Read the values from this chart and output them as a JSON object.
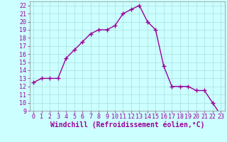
{
  "x": [
    0,
    1,
    2,
    3,
    4,
    5,
    6,
    7,
    8,
    9,
    10,
    11,
    12,
    13,
    14,
    15,
    16,
    17,
    18,
    19,
    20,
    21,
    22,
    23
  ],
  "y": [
    12.5,
    13.0,
    13.0,
    13.0,
    15.5,
    16.5,
    17.5,
    18.5,
    19.0,
    19.0,
    19.5,
    21.0,
    21.5,
    22.0,
    20.0,
    19.0,
    14.5,
    12.0,
    12.0,
    12.0,
    11.5,
    11.5,
    10.0,
    8.5
  ],
  "line_color": "#990099",
  "marker": "+",
  "xlabel": "Windchill (Refroidissement éolien,°C)",
  "xlim": [
    -0.5,
    23.5
  ],
  "ylim": [
    9,
    22.5
  ],
  "xticks": [
    0,
    1,
    2,
    3,
    4,
    5,
    6,
    7,
    8,
    9,
    10,
    11,
    12,
    13,
    14,
    15,
    16,
    17,
    18,
    19,
    20,
    21,
    22,
    23
  ],
  "yticks": [
    9,
    10,
    11,
    12,
    13,
    14,
    15,
    16,
    17,
    18,
    19,
    20,
    21,
    22
  ],
  "bg_color": "#ccffff",
  "grid_color": "#aadddd",
  "tick_label_color": "#990099",
  "xlabel_color": "#990099",
  "xlabel_fontsize": 7,
  "tick_fontsize": 6,
  "marker_size": 4,
  "line_width": 1.0
}
